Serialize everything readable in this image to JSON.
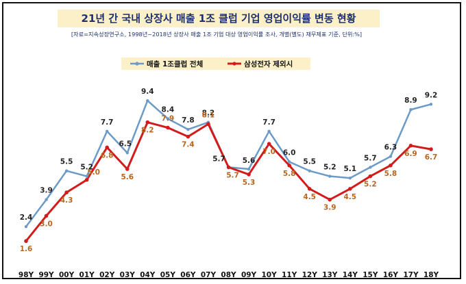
{
  "chart_data": {
    "type": "line",
    "title": "21년 간 국내 상장사 매출 1조 클럽 기업 영업이익률 변동 현황",
    "subtitle": "[자료=지속성장연구소, 1998년~2018년 상장사 매출 1조 기업 대상 영업이익률 조사, 개별(별도) 재무제표 기준, 단위:%]",
    "categories": [
      "98Y",
      "99Y",
      "00Y",
      "01Y",
      "02Y",
      "03Y",
      "04Y",
      "05Y",
      "06Y",
      "07Y",
      "08Y",
      "09Y",
      "10Y",
      "11Y",
      "12Y",
      "13Y",
      "14Y",
      "15Y",
      "16Y",
      "17Y",
      "18Y"
    ],
    "series": [
      {
        "name": "매출 1조클럽 전체",
        "color": "#6b9ac9",
        "label_color": "#222222",
        "values": [
          2.4,
          3.9,
          5.5,
          5.2,
          7.7,
          6.5,
          9.4,
          8.4,
          7.8,
          8.2,
          5.7,
          5.6,
          7.7,
          6.0,
          5.5,
          5.2,
          5.1,
          5.7,
          6.3,
          8.9,
          9.2
        ]
      },
      {
        "name": "삼성전자 제외시",
        "color": "#d21c1c",
        "label_color": "#b8651e",
        "values": [
          1.6,
          3.0,
          4.3,
          5.0,
          6.8,
          5.6,
          8.2,
          7.9,
          7.4,
          8.1,
          5.7,
          5.3,
          7.0,
          5.8,
          4.5,
          3.9,
          4.5,
          5.2,
          5.8,
          6.9,
          6.7
        ]
      }
    ],
    "legend_position": "top-center",
    "grid": false
  }
}
